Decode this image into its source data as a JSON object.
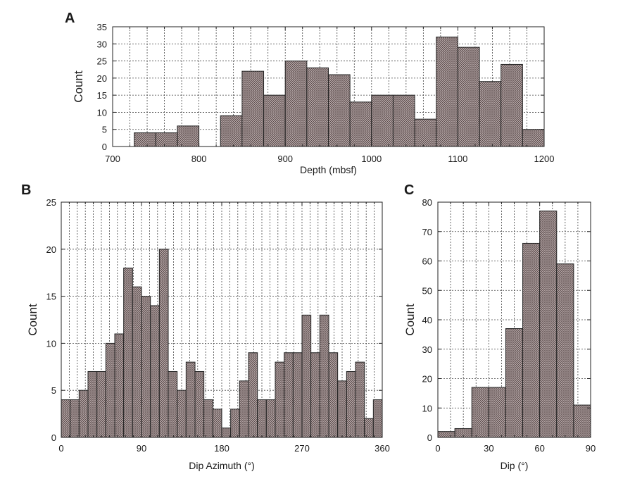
{
  "chart_data": [
    {
      "panel": "A",
      "type": "bar",
      "xlabel": "Depth (mbsf)",
      "ylabel": "Count",
      "xlim": [
        700,
        1200
      ],
      "ylim": [
        0,
        35
      ],
      "xticks": [
        700,
        800,
        900,
        1000,
        1100,
        1200
      ],
      "yticks": [
        0,
        5,
        10,
        15,
        20,
        25,
        30,
        35
      ],
      "bin_width": 25,
      "bin_starts": [
        725,
        750,
        775,
        800,
        825,
        850,
        875,
        900,
        925,
        950,
        975,
        1000,
        1025,
        1050,
        1075,
        1100,
        1125,
        1150,
        1175
      ],
      "values": [
        4,
        4,
        6,
        0,
        9,
        22,
        15,
        25,
        23,
        21,
        13,
        15,
        15,
        8,
        32,
        29,
        19,
        24,
        5
      ],
      "grid": true
    },
    {
      "panel": "B",
      "type": "bar",
      "xlabel": "Dip Azimuth (°)",
      "ylabel": "Count",
      "xlim": [
        0,
        360
      ],
      "ylim": [
        0,
        25
      ],
      "xticks": [
        0,
        90,
        180,
        270,
        360
      ],
      "yticks": [
        0,
        5,
        10,
        15,
        20,
        25
      ],
      "bin_width": 10,
      "bin_starts": [
        0,
        10,
        20,
        30,
        40,
        50,
        60,
        70,
        80,
        90,
        100,
        110,
        120,
        130,
        140,
        150,
        160,
        170,
        180,
        190,
        200,
        210,
        220,
        230,
        240,
        250,
        260,
        270,
        280,
        290,
        300,
        310,
        320,
        330,
        340,
        350
      ],
      "values": [
        4,
        4,
        5,
        7,
        7,
        10,
        11,
        18,
        16,
        15,
        14,
        20,
        7,
        5,
        8,
        7,
        4,
        3,
        1,
        3,
        6,
        9,
        4,
        4,
        8,
        9,
        9,
        13,
        9,
        13,
        9,
        6,
        7,
        8,
        2,
        4
      ],
      "grid": true
    },
    {
      "panel": "C",
      "type": "bar",
      "xlabel": "Dip (°)",
      "ylabel": "Count",
      "xlim": [
        0,
        90
      ],
      "ylim": [
        0,
        80
      ],
      "xticks": [
        0,
        30,
        60,
        90
      ],
      "yticks": [
        0,
        10,
        20,
        30,
        40,
        50,
        60,
        70,
        80
      ],
      "bin_width": 10,
      "bin_starts": [
        0,
        10,
        20,
        30,
        40,
        50,
        60,
        70,
        80
      ],
      "values": [
        2,
        3,
        17,
        17,
        37,
        66,
        77,
        59,
        11
      ],
      "grid": true
    }
  ]
}
